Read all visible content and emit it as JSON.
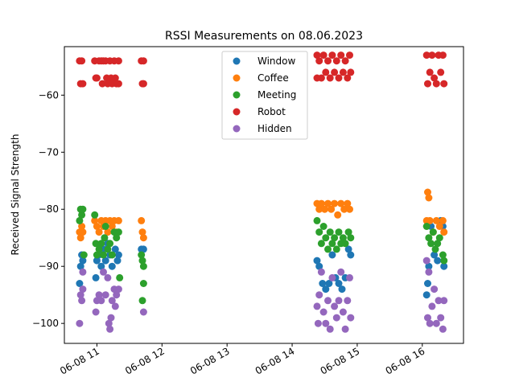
{
  "chart_data": {
    "type": "scatter",
    "title": "RSSI Measurements on 08.06.2023",
    "xlabel": "",
    "ylabel": "Received Signal Strength",
    "x_axis_type": "datetime",
    "xlim": [
      "2023-06-08 10:30",
      "2023-06-08 16:38"
    ],
    "ylim": [
      -103.5,
      -51.5
    ],
    "x_ticks": [
      {
        "t": "2023-06-08 11:00",
        "label": "06-08 11"
      },
      {
        "t": "2023-06-08 12:00",
        "label": "06-08 12"
      },
      {
        "t": "2023-06-08 13:00",
        "label": "06-08 13"
      },
      {
        "t": "2023-06-08 14:00",
        "label": "06-08 14"
      },
      {
        "t": "2023-06-08 15:00",
        "label": "06-08 15"
      },
      {
        "t": "2023-06-08 16:00",
        "label": "06-08 16"
      }
    ],
    "y_ticks": [
      {
        "v": -60,
        "label": "−60"
      },
      {
        "v": -70,
        "label": "−70"
      },
      {
        "v": -80,
        "label": "−80"
      },
      {
        "v": -90,
        "label": "−90"
      },
      {
        "v": -100,
        "label": "−100"
      }
    ],
    "grid": false,
    "legend_position": "top-center",
    "series": [
      {
        "name": "Window",
        "color": "#1f77b4",
        "points": [
          [
            "2023-06-08 10:44",
            -93
          ],
          [
            "2023-06-08 10:45",
            -90
          ],
          [
            "2023-06-08 10:46",
            -88
          ],
          [
            "2023-06-08 10:47",
            -89
          ],
          [
            "2023-06-08 10:59",
            -92
          ],
          [
            "2023-06-08 11:00",
            -89
          ],
          [
            "2023-06-08 11:02",
            -88
          ],
          [
            "2023-06-08 11:04",
            -90
          ],
          [
            "2023-06-08 11:06",
            -87
          ],
          [
            "2023-06-08 11:08",
            -89
          ],
          [
            "2023-06-08 11:10",
            -86
          ],
          [
            "2023-06-08 11:12",
            -88
          ],
          [
            "2023-06-08 11:14",
            -90
          ],
          [
            "2023-06-08 11:17",
            -87
          ],
          [
            "2023-06-08 11:19",
            -89
          ],
          [
            "2023-06-08 11:20",
            -88
          ],
          [
            "2023-06-08 11:41",
            -87
          ],
          [
            "2023-06-08 11:43",
            -87
          ],
          [
            "2023-06-08 14:23",
            -89
          ],
          [
            "2023-06-08 14:25",
            -90
          ],
          [
            "2023-06-08 14:28",
            -93
          ],
          [
            "2023-06-08 14:31",
            -94
          ],
          [
            "2023-06-08 14:34",
            -93
          ],
          [
            "2023-06-08 14:37",
            -88
          ],
          [
            "2023-06-08 14:40",
            -92
          ],
          [
            "2023-06-08 14:43",
            -93
          ],
          [
            "2023-06-08 14:46",
            -94
          ],
          [
            "2023-06-08 14:49",
            -92
          ],
          [
            "2023-06-08 14:52",
            -87
          ],
          [
            "2023-06-08 14:54",
            -88
          ],
          [
            "2023-06-08 16:04",
            -95
          ],
          [
            "2023-06-08 16:05",
            -93
          ],
          [
            "2023-06-08 16:06",
            -90
          ],
          [
            "2023-06-08 16:08",
            -83
          ],
          [
            "2023-06-08 16:11",
            -88
          ],
          [
            "2023-06-08 16:14",
            -89
          ],
          [
            "2023-06-08 16:17",
            -82
          ],
          [
            "2023-06-08 16:19",
            -83
          ],
          [
            "2023-06-08 16:20",
            -90
          ]
        ]
      },
      {
        "name": "Coffee",
        "color": "#ff7f0e",
        "points": [
          [
            "2023-06-08 10:44",
            -84
          ],
          [
            "2023-06-08 10:45",
            -85
          ],
          [
            "2023-06-08 10:46",
            -83
          ],
          [
            "2023-06-08 10:47",
            -84
          ],
          [
            "2023-06-08 10:58",
            -82
          ],
          [
            "2023-06-08 11:00",
            -83
          ],
          [
            "2023-06-08 11:02",
            -84
          ],
          [
            "2023-06-08 11:04",
            -82
          ],
          [
            "2023-06-08 11:06",
            -83
          ],
          [
            "2023-06-08 11:08",
            -82
          ],
          [
            "2023-06-08 11:10",
            -84
          ],
          [
            "2023-06-08 11:12",
            -82
          ],
          [
            "2023-06-08 11:14",
            -83
          ],
          [
            "2023-06-08 11:16",
            -82
          ],
          [
            "2023-06-08 11:18",
            -84
          ],
          [
            "2023-06-08 11:20",
            -82
          ],
          [
            "2023-06-08 11:41",
            -82
          ],
          [
            "2023-06-08 11:42",
            -84
          ],
          [
            "2023-06-08 11:43",
            -85
          ],
          [
            "2023-06-08 14:23",
            -79
          ],
          [
            "2023-06-08 14:25",
            -80
          ],
          [
            "2023-06-08 14:27",
            -79
          ],
          [
            "2023-06-08 14:30",
            -80
          ],
          [
            "2023-06-08 14:33",
            -79
          ],
          [
            "2023-06-08 14:36",
            -80
          ],
          [
            "2023-06-08 14:39",
            -79
          ],
          [
            "2023-06-08 14:42",
            -81
          ],
          [
            "2023-06-08 14:45",
            -79
          ],
          [
            "2023-06-08 14:48",
            -80
          ],
          [
            "2023-06-08 14:51",
            -79
          ],
          [
            "2023-06-08 14:53",
            -80
          ],
          [
            "2023-06-08 16:04",
            -82
          ],
          [
            "2023-06-08 16:05",
            -77
          ],
          [
            "2023-06-08 16:06",
            -78
          ],
          [
            "2023-06-08 16:07",
            -82
          ],
          [
            "2023-06-08 16:10",
            -84
          ],
          [
            "2023-06-08 16:13",
            -82
          ],
          [
            "2023-06-08 16:16",
            -83
          ],
          [
            "2023-06-08 16:19",
            -82
          ],
          [
            "2023-06-08 16:20",
            -84
          ]
        ]
      },
      {
        "name": "Meeting",
        "color": "#2ca02c",
        "points": [
          [
            "2023-06-08 10:44",
            -82
          ],
          [
            "2023-06-08 10:45",
            -80
          ],
          [
            "2023-06-08 10:46",
            -81
          ],
          [
            "2023-06-08 10:47",
            -80
          ],
          [
            "2023-06-08 10:48",
            -88
          ],
          [
            "2023-06-08 10:58",
            -81
          ],
          [
            "2023-06-08 10:59",
            -86
          ],
          [
            "2023-06-08 11:00",
            -88
          ],
          [
            "2023-06-08 11:02",
            -87
          ],
          [
            "2023-06-08 11:04",
            -86
          ],
          [
            "2023-06-08 11:06",
            -88
          ],
          [
            "2023-06-08 11:07",
            -85
          ],
          [
            "2023-06-08 11:08",
            -83
          ],
          [
            "2023-06-08 11:10",
            -87
          ],
          [
            "2023-06-08 11:12",
            -86
          ],
          [
            "2023-06-08 11:14",
            -88
          ],
          [
            "2023-06-08 11:16",
            -84
          ],
          [
            "2023-06-08 11:18",
            -85
          ],
          [
            "2023-06-08 11:20",
            -84
          ],
          [
            "2023-06-08 11:21",
            -92
          ],
          [
            "2023-06-08 11:41",
            -88
          ],
          [
            "2023-06-08 11:42",
            -89
          ],
          [
            "2023-06-08 11:43",
            -90
          ],
          [
            "2023-06-08 11:43",
            -93
          ],
          [
            "2023-06-08 11:42",
            -96
          ],
          [
            "2023-06-08 14:23",
            -82
          ],
          [
            "2023-06-08 14:25",
            -84
          ],
          [
            "2023-06-08 14:27",
            -86
          ],
          [
            "2023-06-08 14:29",
            -83
          ],
          [
            "2023-06-08 14:31",
            -85
          ],
          [
            "2023-06-08 14:33",
            -87
          ],
          [
            "2023-06-08 14:35",
            -84
          ],
          [
            "2023-06-08 14:37",
            -86
          ],
          [
            "2023-06-08 14:39",
            -85
          ],
          [
            "2023-06-08 14:41",
            -87
          ],
          [
            "2023-06-08 14:43",
            -84
          ],
          [
            "2023-06-08 14:45",
            -86
          ],
          [
            "2023-06-08 14:47",
            -85
          ],
          [
            "2023-06-08 14:49",
            -86
          ],
          [
            "2023-06-08 14:52",
            -84
          ],
          [
            "2023-06-08 14:54",
            -85
          ],
          [
            "2023-06-08 16:04",
            -83
          ],
          [
            "2023-06-08 16:06",
            -85
          ],
          [
            "2023-06-08 16:08",
            -86
          ],
          [
            "2023-06-08 16:10",
            -84
          ],
          [
            "2023-06-08 16:12",
            -87
          ],
          [
            "2023-06-08 16:14",
            -86
          ],
          [
            "2023-06-08 16:16",
            -85
          ],
          [
            "2023-06-08 16:19",
            -88
          ],
          [
            "2023-06-08 16:20",
            -89
          ]
        ]
      },
      {
        "name": "Robot",
        "color": "#d62728",
        "points": [
          [
            "2023-06-08 10:44",
            -54
          ],
          [
            "2023-06-08 10:45",
            -58
          ],
          [
            "2023-06-08 10:46",
            -54
          ],
          [
            "2023-06-08 10:47",
            -58
          ],
          [
            "2023-06-08 10:58",
            -54
          ],
          [
            "2023-06-08 10:59",
            -57
          ],
          [
            "2023-06-08 11:00",
            -57
          ],
          [
            "2023-06-08 11:02",
            -54
          ],
          [
            "2023-06-08 11:04",
            -54
          ],
          [
            "2023-06-08 11:05",
            -58
          ],
          [
            "2023-06-08 11:06",
            -54
          ],
          [
            "2023-06-08 11:08",
            -54
          ],
          [
            "2023-06-08 11:09",
            -57
          ],
          [
            "2023-06-08 11:10",
            -58
          ],
          [
            "2023-06-08 11:12",
            -54
          ],
          [
            "2023-06-08 11:13",
            -57
          ],
          [
            "2023-06-08 11:14",
            -58
          ],
          [
            "2023-06-08 11:16",
            -54
          ],
          [
            "2023-06-08 11:17",
            -57
          ],
          [
            "2023-06-08 11:18",
            -58
          ],
          [
            "2023-06-08 11:20",
            -54
          ],
          [
            "2023-06-08 11:20",
            -58
          ],
          [
            "2023-06-08 11:41",
            -54
          ],
          [
            "2023-06-08 11:42",
            -58
          ],
          [
            "2023-06-08 11:43",
            -54
          ],
          [
            "2023-06-08 11:43",
            -58
          ],
          [
            "2023-06-08 14:23",
            -53
          ],
          [
            "2023-06-08 14:23",
            -57
          ],
          [
            "2023-06-08 14:25",
            -54
          ],
          [
            "2023-06-08 14:27",
            -57
          ],
          [
            "2023-06-08 14:29",
            -53
          ],
          [
            "2023-06-08 14:31",
            -56
          ],
          [
            "2023-06-08 14:33",
            -54
          ],
          [
            "2023-06-08 14:35",
            -57
          ],
          [
            "2023-06-08 14:37",
            -53
          ],
          [
            "2023-06-08 14:39",
            -56
          ],
          [
            "2023-06-08 14:41",
            -54
          ],
          [
            "2023-06-08 14:43",
            -57
          ],
          [
            "2023-06-08 14:45",
            -53
          ],
          [
            "2023-06-08 14:47",
            -56
          ],
          [
            "2023-06-08 14:49",
            -54
          ],
          [
            "2023-06-08 14:51",
            -57
          ],
          [
            "2023-06-08 14:53",
            -53
          ],
          [
            "2023-06-08 14:54",
            -56
          ],
          [
            "2023-06-08 16:04",
            -53
          ],
          [
            "2023-06-08 16:05",
            -58
          ],
          [
            "2023-06-08 16:07",
            -56
          ],
          [
            "2023-06-08 16:09",
            -53
          ],
          [
            "2023-06-08 16:11",
            -57
          ],
          [
            "2023-06-08 16:13",
            -58
          ],
          [
            "2023-06-08 16:15",
            -53
          ],
          [
            "2023-06-08 16:17",
            -56
          ],
          [
            "2023-06-08 16:19",
            -53
          ],
          [
            "2023-06-08 16:20",
            -58
          ]
        ]
      },
      {
        "name": "Hidden",
        "color": "#9467bd",
        "points": [
          [
            "2023-06-08 10:44",
            -100
          ],
          [
            "2023-06-08 10:45",
            -95
          ],
          [
            "2023-06-08 10:46",
            -96
          ],
          [
            "2023-06-08 10:47",
            -91
          ],
          [
            "2023-06-08 10:47",
            -94
          ],
          [
            "2023-06-08 10:59",
            -98
          ],
          [
            "2023-06-08 11:00",
            -96
          ],
          [
            "2023-06-08 11:02",
            -95
          ],
          [
            "2023-06-08 11:04",
            -96
          ],
          [
            "2023-06-08 11:06",
            -91
          ],
          [
            "2023-06-08 11:08",
            -95
          ],
          [
            "2023-06-08 11:10",
            -92
          ],
          [
            "2023-06-08 11:11",
            -100
          ],
          [
            "2023-06-08 11:12",
            -101
          ],
          [
            "2023-06-08 11:13",
            -99
          ],
          [
            "2023-06-08 11:14",
            -96
          ],
          [
            "2023-06-08 11:16",
            -94
          ],
          [
            "2023-06-08 11:17",
            -97
          ],
          [
            "2023-06-08 11:18",
            -95
          ],
          [
            "2023-06-08 11:20",
            -94
          ],
          [
            "2023-06-08 11:43",
            -98
          ],
          [
            "2023-06-08 14:23",
            -97
          ],
          [
            "2023-06-08 14:24",
            -100
          ],
          [
            "2023-06-08 14:25",
            -95
          ],
          [
            "2023-06-08 14:27",
            -91
          ],
          [
            "2023-06-08 14:29",
            -98
          ],
          [
            "2023-06-08 14:31",
            -100
          ],
          [
            "2023-06-08 14:33",
            -96
          ],
          [
            "2023-06-08 14:35",
            -101
          ],
          [
            "2023-06-08 14:37",
            -92
          ],
          [
            "2023-06-08 14:39",
            -97
          ],
          [
            "2023-06-08 14:41",
            -99
          ],
          [
            "2023-06-08 14:43",
            -96
          ],
          [
            "2023-06-08 14:45",
            -91
          ],
          [
            "2023-06-08 14:47",
            -98
          ],
          [
            "2023-06-08 14:49",
            -101
          ],
          [
            "2023-06-08 14:51",
            -96
          ],
          [
            "2023-06-08 14:53",
            -92
          ],
          [
            "2023-06-08 14:54",
            -99
          ],
          [
            "2023-06-08 16:04",
            -89
          ],
          [
            "2023-06-08 16:05",
            -99
          ],
          [
            "2023-06-08 16:06",
            -91
          ],
          [
            "2023-06-08 16:07",
            -100
          ],
          [
            "2023-06-08 16:09",
            -97
          ],
          [
            "2023-06-08 16:11",
            -94
          ],
          [
            "2023-06-08 16:13",
            -100
          ],
          [
            "2023-06-08 16:15",
            -96
          ],
          [
            "2023-06-08 16:17",
            -99
          ],
          [
            "2023-06-08 16:19",
            -101
          ],
          [
            "2023-06-08 16:20",
            -96
          ]
        ]
      }
    ]
  }
}
